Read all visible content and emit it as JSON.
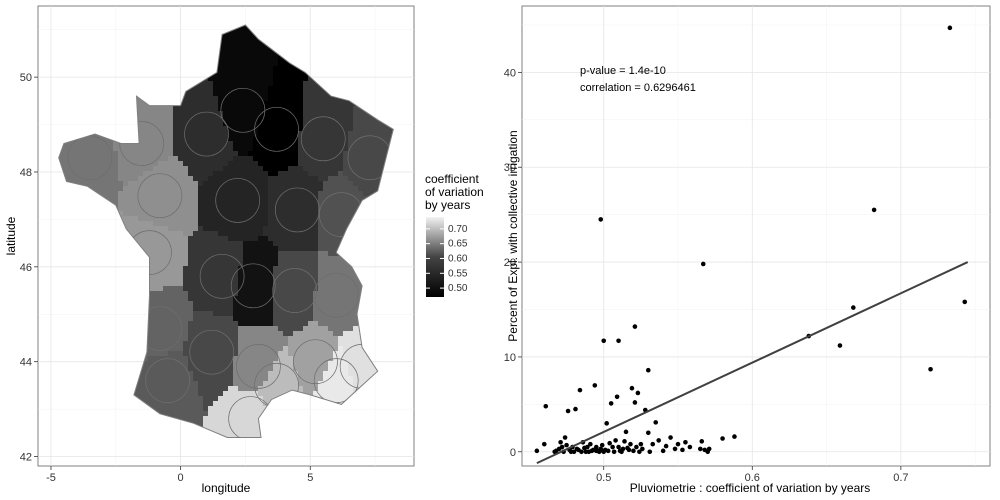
{
  "chart_data": [
    {
      "type": "map",
      "xlabel": "longitude",
      "ylabel": "latitude",
      "x_ticks": [
        -5,
        0,
        5
      ],
      "y_ticks": [
        42,
        44,
        46,
        48,
        50
      ],
      "xlim": [
        -5.5,
        9
      ],
      "ylim": [
        41.8,
        51.5
      ],
      "legend": {
        "title_lines": [
          "coefficient",
          "of variation",
          "by years"
        ],
        "ticks": [
          0.7,
          0.65,
          0.6,
          0.55,
          0.5
        ],
        "tick_labels": [
          "0.70",
          "0.65",
          "0.60",
          "0.55",
          "0.50"
        ],
        "range": [
          0.47,
          0.74
        ],
        "color_low": "#000000",
        "color_high": "#f2f2f2",
        "position": "right"
      },
      "regions": [
        {
          "lon": -3.5,
          "lat": 48.3,
          "value": 0.6
        },
        {
          "lon": -1.5,
          "lat": 48.6,
          "value": 0.62
        },
        {
          "lon": -0.8,
          "lat": 47.5,
          "value": 0.63
        },
        {
          "lon": -1.2,
          "lat": 46.3,
          "value": 0.64
        },
        {
          "lon": -0.8,
          "lat": 44.7,
          "value": 0.58
        },
        {
          "lon": -0.5,
          "lat": 43.6,
          "value": 0.57
        },
        {
          "lon": 1.2,
          "lat": 44.2,
          "value": 0.55
        },
        {
          "lon": 1.0,
          "lat": 48.8,
          "value": 0.52
        },
        {
          "lon": 2.4,
          "lat": 49.3,
          "value": 0.48
        },
        {
          "lon": 3.7,
          "lat": 48.9,
          "value": 0.47
        },
        {
          "lon": 5.5,
          "lat": 48.7,
          "value": 0.53
        },
        {
          "lon": 7.3,
          "lat": 48.3,
          "value": 0.55
        },
        {
          "lon": 2.2,
          "lat": 47.4,
          "value": 0.51
        },
        {
          "lon": 4.5,
          "lat": 47.2,
          "value": 0.52
        },
        {
          "lon": 6.2,
          "lat": 47.1,
          "value": 0.56
        },
        {
          "lon": 1.6,
          "lat": 45.8,
          "value": 0.53
        },
        {
          "lon": 2.8,
          "lat": 45.6,
          "value": 0.49
        },
        {
          "lon": 4.4,
          "lat": 45.5,
          "value": 0.55
        },
        {
          "lon": 6.0,
          "lat": 45.4,
          "value": 0.6
        },
        {
          "lon": 3.0,
          "lat": 43.9,
          "value": 0.62
        },
        {
          "lon": 2.7,
          "lat": 42.8,
          "value": 0.71
        },
        {
          "lon": 3.7,
          "lat": 43.5,
          "value": 0.68
        },
        {
          "lon": 5.2,
          "lat": 44.0,
          "value": 0.65
        },
        {
          "lon": 6.0,
          "lat": 43.6,
          "value": 0.73
        },
        {
          "lon": 7.0,
          "lat": 43.9,
          "value": 0.72
        }
      ]
    },
    {
      "type": "scatter",
      "xlabel": "Pluviometrie : coefficient of variation by years",
      "ylabel": "Percent of Expl. with collective irrigation",
      "x_ticks": [
        0.5,
        0.6,
        0.7
      ],
      "y_ticks": [
        0,
        10,
        20,
        30,
        40
      ],
      "xlim": [
        0.445,
        0.76
      ],
      "ylim": [
        -1.5,
        47
      ],
      "annotations": [
        "p-value = 1.4e-10",
        "correlation = 0.6296461"
      ],
      "fit_line": {
        "x": [
          0.455,
          0.745
        ],
        "y": [
          -1.2,
          20.0
        ]
      },
      "x": [
        0.455,
        0.46,
        0.461,
        0.467,
        0.468,
        0.47,
        0.471,
        0.472,
        0.473,
        0.474,
        0.475,
        0.476,
        0.477,
        0.478,
        0.479,
        0.48,
        0.481,
        0.482,
        0.483,
        0.484,
        0.485,
        0.486,
        0.487,
        0.488,
        0.489,
        0.49,
        0.491,
        0.492,
        0.493,
        0.494,
        0.495,
        0.496,
        0.497,
        0.498,
        0.499,
        0.5,
        0.501,
        0.502,
        0.503,
        0.504,
        0.505,
        0.506,
        0.507,
        0.508,
        0.509,
        0.51,
        0.511,
        0.512,
        0.513,
        0.514,
        0.515,
        0.516,
        0.517,
        0.518,
        0.519,
        0.52,
        0.521,
        0.522,
        0.523,
        0.524,
        0.525,
        0.526,
        0.528,
        0.53,
        0.531,
        0.533,
        0.535,
        0.537,
        0.54,
        0.542,
        0.545,
        0.548,
        0.55,
        0.553,
        0.555,
        0.558,
        0.565,
        0.566,
        0.568,
        0.57,
        0.571,
        0.58,
        0.588,
        0.638,
        0.659,
        0.668,
        0.682,
        0.72,
        0.733,
        0.743,
        0.498,
        0.567,
        0.5,
        0.51,
        0.521,
        0.53,
        0.495
      ],
      "y": [
        0.1,
        0.8,
        4.8,
        0.0,
        0.1,
        0.3,
        1.0,
        0.5,
        0.0,
        1.5,
        0.7,
        4.3,
        0.2,
        0.0,
        0.5,
        0.0,
        4.5,
        0.3,
        0.2,
        6.5,
        0.0,
        1.0,
        0.4,
        0.0,
        0.5,
        0.0,
        0.8,
        0.1,
        0.2,
        7.0,
        0.5,
        0.1,
        0.0,
        0.3,
        0.7,
        0.0,
        0.2,
        3.0,
        0.1,
        0.9,
        5.1,
        0.5,
        0.0,
        1.2,
        5.8,
        0.5,
        0.1,
        0.0,
        0.3,
        1.1,
        2.1,
        0.4,
        0.2,
        0.8,
        6.7,
        0.1,
        5.2,
        0.5,
        6.2,
        0.0,
        0.8,
        0.3,
        4.4,
        2.0,
        0.0,
        0.8,
        3.1,
        1.2,
        0.1,
        0.6,
        1.5,
        0.3,
        0.8,
        0.2,
        1.0,
        0.5,
        0.3,
        1.1,
        0.2,
        0.0,
        0.3,
        1.4,
        1.6,
        12.2,
        11.2,
        15.2,
        25.5,
        8.7,
        44.7,
        15.8,
        24.5,
        19.8,
        11.7,
        11.7,
        13.2,
        8.6,
        0.1
      ]
    }
  ]
}
